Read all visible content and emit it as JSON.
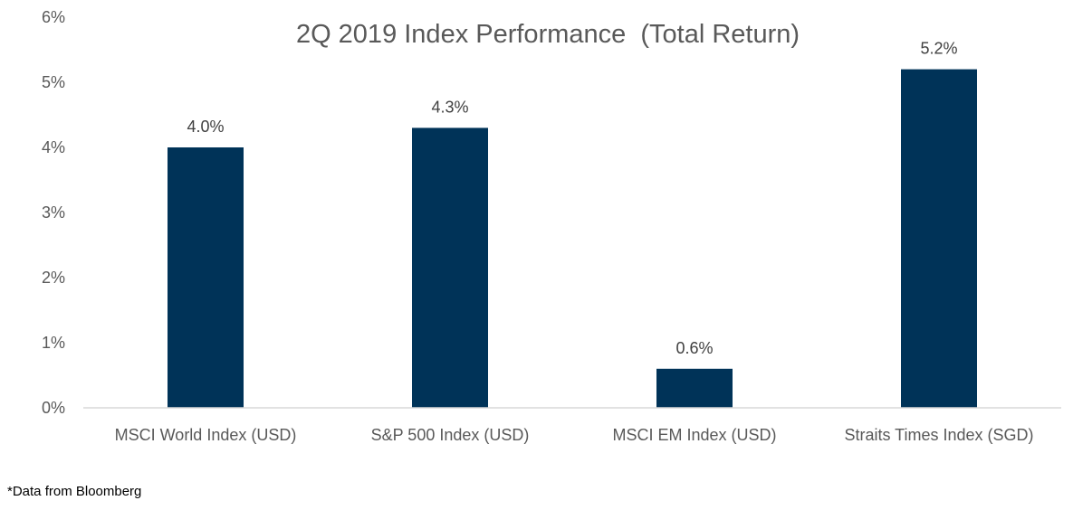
{
  "chart_data": {
    "type": "bar",
    "title": "2Q 2019 Index Performance  (Total Return)",
    "categories": [
      "MSCI World Index (USD)",
      "S&P 500 Index (USD)",
      "MSCI EM Index (USD)",
      "Straits Times Index (SGD)"
    ],
    "values": [
      4.0,
      4.3,
      0.6,
      5.2
    ],
    "data_labels": [
      "4.0%",
      "4.3%",
      "0.6%",
      "5.2%"
    ],
    "ylim": [
      0,
      6
    ],
    "y_ticks": [
      0,
      1,
      2,
      3,
      4,
      5,
      6
    ],
    "y_tick_labels": [
      "0%",
      "1%",
      "2%",
      "3%",
      "4%",
      "5%",
      "6%"
    ],
    "xlabel": "",
    "ylabel": "",
    "grid": false,
    "legend": "none",
    "bar_color": "#003358",
    "axis_color": "#d9d9d9"
  },
  "footnote": "*Data from Bloomberg"
}
